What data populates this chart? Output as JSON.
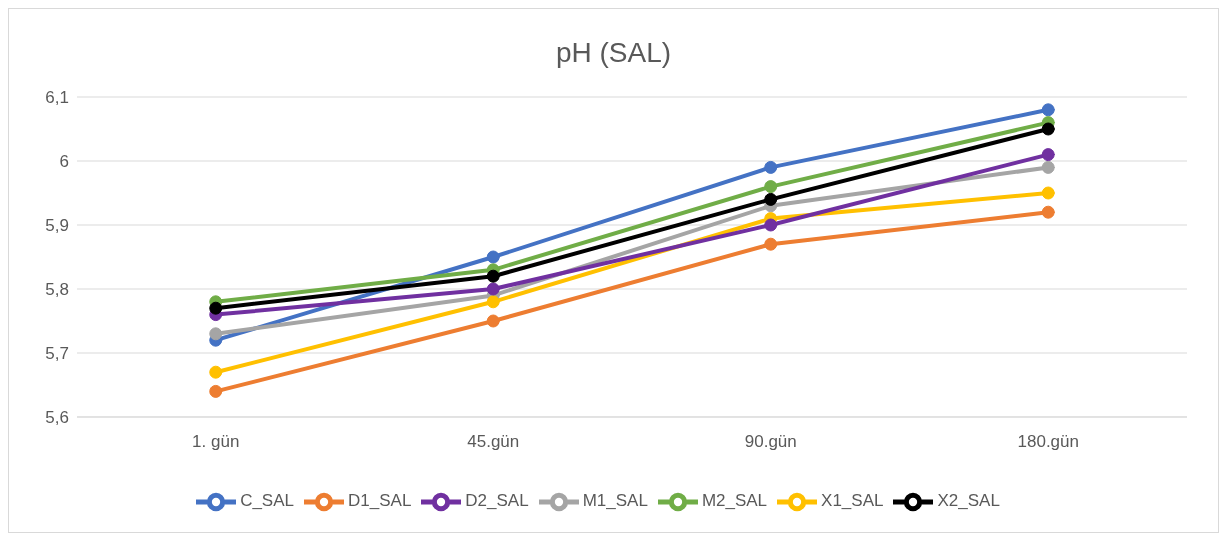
{
  "chart_data": {
    "type": "line",
    "title": "pH (SAL)",
    "categories": [
      "1. gün",
      "45.gün",
      "90.gün",
      "180.gün"
    ],
    "series": [
      {
        "name": "C_SAL",
        "color": "#4472c4",
        "values": [
          5.72,
          5.85,
          5.99,
          6.08
        ]
      },
      {
        "name": "D1_SAL",
        "color": "#ed7d31",
        "values": [
          5.64,
          5.75,
          5.87,
          5.92
        ]
      },
      {
        "name": "M1_SAL",
        "color": "#a5a5a5",
        "values": [
          5.73,
          5.79,
          5.93,
          5.99
        ]
      },
      {
        "name": "X1_SAL",
        "color": "#ffc000",
        "values": [
          5.67,
          5.78,
          5.91,
          5.95
        ]
      },
      {
        "name": "D2_SAL",
        "color": "#7030a0",
        "values": [
          5.76,
          5.8,
          5.9,
          6.01
        ]
      },
      {
        "name": "M2_SAL",
        "color": "#70ad47",
        "values": [
          5.78,
          5.83,
          5.96,
          6.06
        ]
      },
      {
        "name": "X2_SAL",
        "color": "#000000",
        "values": [
          5.77,
          5.82,
          5.94,
          6.05
        ]
      }
    ],
    "ylim": [
      5.6,
      6.1
    ],
    "yticks": [
      {
        "value": 5.6,
        "label": "5,6"
      },
      {
        "value": 5.7,
        "label": "5,7"
      },
      {
        "value": 5.8,
        "label": "5,8"
      },
      {
        "value": 5.9,
        "label": "5,9"
      },
      6,
      {
        "value": 6.1,
        "label": "6,1"
      }
    ],
    "grid": "y",
    "legend": "bottom",
    "marker": "circle",
    "line_style": "solid"
  }
}
